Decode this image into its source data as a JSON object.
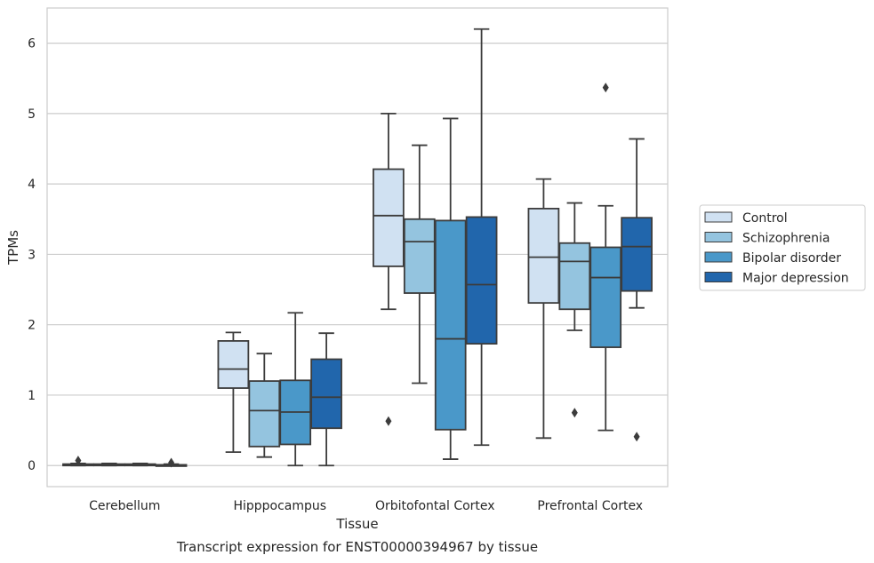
{
  "chart_data": {
    "type": "box",
    "title": "Transcript expression for ENST00000394967 by tissue",
    "xlabel": "Tissue",
    "ylabel": "TPMs",
    "ylim": [
      -0.3,
      6.5
    ],
    "yticks": [
      0,
      1,
      2,
      3,
      4,
      5,
      6
    ],
    "grid": "horizontal",
    "legend_position": "right",
    "categories": [
      "Cerebellum",
      "Hipppocampus",
      "Orbitofontal Cortex",
      "Prefrontal Cortex"
    ],
    "series": [
      {
        "name": "Control",
        "color": "#d0e1f2",
        "boxes": [
          {
            "whislo": 0.0,
            "q1": 0.0,
            "med": 0.01,
            "q3": 0.02,
            "whishi": 0.03,
            "fliers": [
              0.07
            ]
          },
          {
            "whislo": 0.19,
            "q1": 1.1,
            "med": 1.37,
            "q3": 1.77,
            "whishi": 1.89,
            "fliers": []
          },
          {
            "whislo": 2.22,
            "q1": 2.83,
            "med": 3.55,
            "q3": 4.21,
            "whishi": 5.0,
            "fliers": [
              0.63
            ]
          },
          {
            "whislo": 0.39,
            "q1": 2.31,
            "med": 2.96,
            "q3": 3.65,
            "whishi": 4.07,
            "fliers": []
          }
        ]
      },
      {
        "name": "Schizophrenia",
        "color": "#94c4df",
        "boxes": [
          {
            "whislo": 0.0,
            "q1": 0.0,
            "med": 0.01,
            "q3": 0.02,
            "whishi": 0.03,
            "fliers": []
          },
          {
            "whislo": 0.12,
            "q1": 0.27,
            "med": 0.78,
            "q3": 1.2,
            "whishi": 1.59,
            "fliers": []
          },
          {
            "whislo": 1.17,
            "q1": 2.45,
            "med": 3.18,
            "q3": 3.5,
            "whishi": 4.55,
            "fliers": []
          },
          {
            "whislo": 1.92,
            "q1": 2.22,
            "med": 2.9,
            "q3": 3.16,
            "whishi": 3.73,
            "fliers": [
              0.75
            ]
          }
        ]
      },
      {
        "name": "Bipolar disorder",
        "color": "#4a98c9",
        "boxes": [
          {
            "whislo": 0.0,
            "q1": 0.0,
            "med": 0.01,
            "q3": 0.02,
            "whishi": 0.03,
            "fliers": []
          },
          {
            "whislo": 0.0,
            "q1": 0.3,
            "med": 0.76,
            "q3": 1.21,
            "whishi": 2.17,
            "fliers": []
          },
          {
            "whislo": 0.09,
            "q1": 0.51,
            "med": 1.8,
            "q3": 3.48,
            "whishi": 4.93,
            "fliers": []
          },
          {
            "whislo": 0.5,
            "q1": 1.68,
            "med": 2.67,
            "q3": 3.1,
            "whishi": 3.69,
            "fliers": [
              5.37
            ]
          }
        ]
      },
      {
        "name": "Major depression",
        "color": "#2166ac",
        "boxes": [
          {
            "whislo": 0.0,
            "q1": 0.0,
            "med": 0.0,
            "q3": 0.01,
            "whishi": 0.02,
            "fliers": [
              0.04
            ]
          },
          {
            "whislo": 0.0,
            "q1": 0.53,
            "med": 0.97,
            "q3": 1.51,
            "whishi": 1.88,
            "fliers": []
          },
          {
            "whislo": 0.29,
            "q1": 1.73,
            "med": 2.57,
            "q3": 3.53,
            "whishi": 6.2,
            "fliers": []
          },
          {
            "whislo": 2.24,
            "q1": 2.48,
            "med": 3.11,
            "q3": 3.52,
            "whishi": 4.64,
            "fliers": [
              0.41
            ]
          }
        ]
      }
    ]
  }
}
